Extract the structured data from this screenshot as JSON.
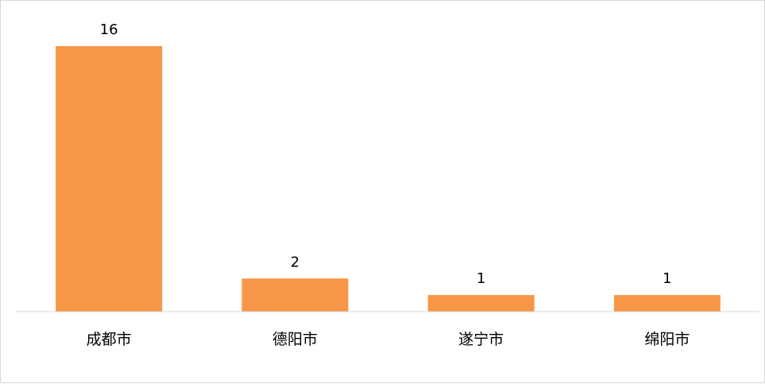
{
  "chart_data": {
    "type": "bar",
    "categories": [
      "成都市",
      "德阳市",
      "遂宁市",
      "绵阳市"
    ],
    "values": [
      16,
      2,
      1,
      1
    ],
    "title": "",
    "xlabel": "",
    "ylabel": "",
    "ylim": [
      0,
      16
    ],
    "grid": false,
    "data_labels": true,
    "bar_color": "#F79646",
    "axis_color": "#d9d9d9"
  }
}
